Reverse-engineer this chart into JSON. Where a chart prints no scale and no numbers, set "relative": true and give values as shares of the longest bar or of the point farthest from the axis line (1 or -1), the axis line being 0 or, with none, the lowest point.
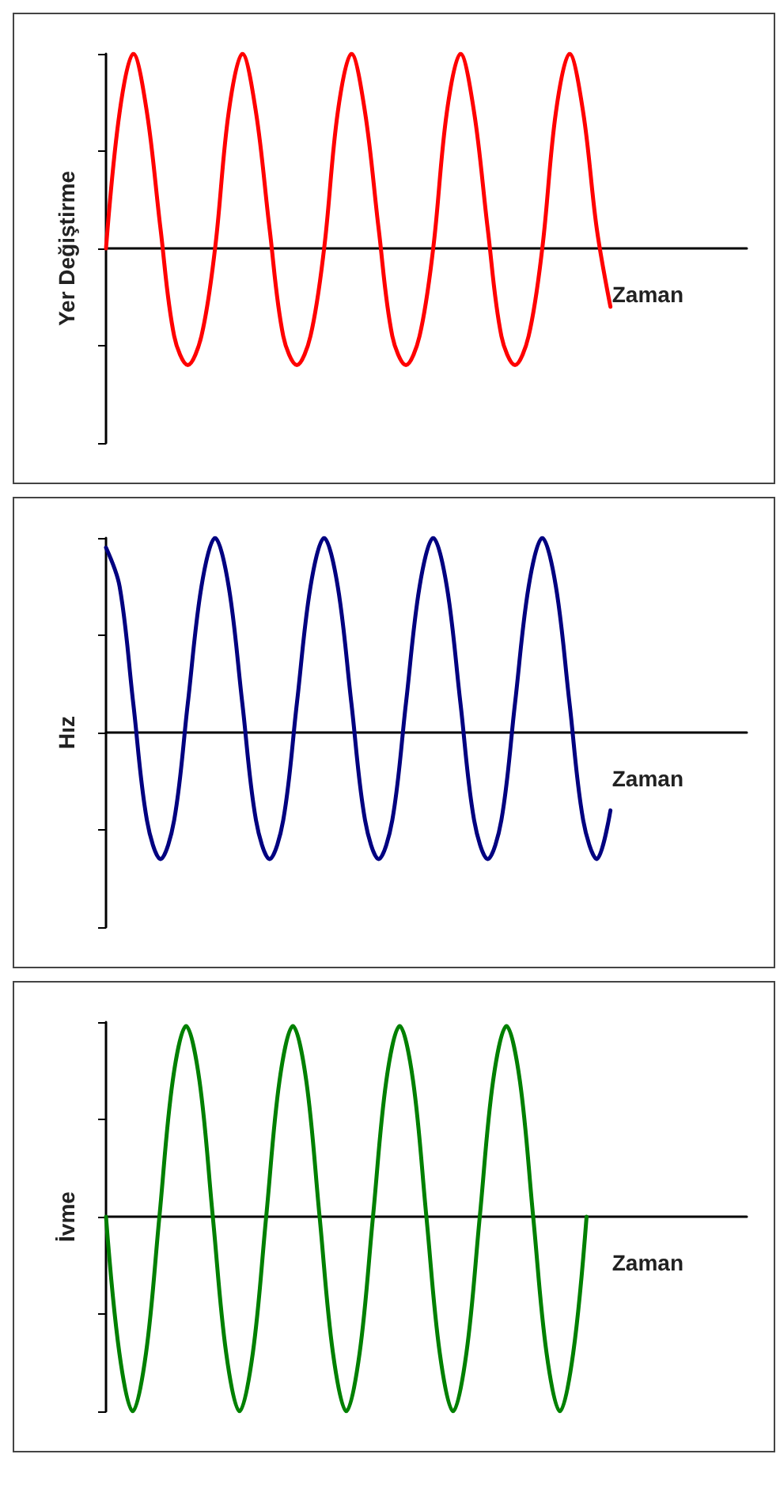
{
  "chart_data": [
    {
      "type": "line",
      "relative": true,
      "xlabel": "Zaman",
      "ylabel": "Yer Değiştirme",
      "categories": [
        null,
        null,
        null,
        null,
        null,
        null,
        null,
        null,
        null,
        null,
        null,
        null,
        null,
        null,
        null,
        null,
        null,
        null,
        null,
        null,
        null,
        null,
        null,
        null,
        null,
        null,
        null,
        null,
        null,
        null,
        null,
        null,
        null,
        null,
        null,
        null,
        null,
        null,
        null,
        null,
        null,
        null,
        null,
        null,
        null,
        null,
        null,
        null
      ],
      "series": [
        {
          "color": "#ff0000",
          "values": [
            0,
            0.7,
            1,
            0.7,
            0.1,
            -0.45,
            -0.6,
            -0.45,
            0,
            0.7,
            1,
            0.7,
            0.1,
            -0.45,
            -0.6,
            -0.45,
            0,
            0.7,
            1,
            0.7,
            0.1,
            -0.45,
            -0.6,
            -0.45,
            0,
            0.7,
            1,
            0.7,
            0.1,
            -0.45,
            -0.6,
            -0.45,
            0,
            0.7,
            1,
            0.7,
            0.1,
            -0.3,
            null,
            null,
            null,
            null,
            null,
            null,
            null,
            null,
            null,
            null
          ]
        }
      ]
    },
    {
      "type": "line",
      "relative": true,
      "xlabel": "Zaman",
      "ylabel": "Hız",
      "categories": [
        null,
        null,
        null,
        null,
        null,
        null,
        null,
        null,
        null,
        null,
        null,
        null,
        null,
        null,
        null,
        null,
        null,
        null,
        null,
        null,
        null,
        null,
        null,
        null,
        null,
        null,
        null,
        null,
        null,
        null,
        null,
        null,
        null,
        null,
        null,
        null,
        null,
        null,
        null,
        null,
        null,
        null,
        null,
        null,
        null,
        null,
        null,
        null
      ],
      "series": [
        {
          "color": "#000080",
          "values": [
            0.95,
            0.75,
            0.15,
            -0.45,
            -0.65,
            -0.45,
            0.15,
            0.75,
            1,
            0.75,
            0.15,
            -0.45,
            -0.65,
            -0.45,
            0.15,
            0.75,
            1,
            0.75,
            0.15,
            -0.45,
            -0.65,
            -0.45,
            0.15,
            0.75,
            1,
            0.75,
            0.15,
            -0.45,
            -0.65,
            -0.45,
            0.15,
            0.75,
            1,
            0.75,
            0.15,
            -0.45,
            -0.65,
            -0.4,
            null,
            null,
            null,
            null,
            null,
            null,
            null,
            null,
            null,
            null
          ]
        }
      ]
    },
    {
      "type": "line",
      "relative": true,
      "xlabel": "Zaman",
      "ylabel": "İvme",
      "categories": [
        null,
        null,
        null,
        null,
        null,
        null,
        null,
        null,
        null,
        null,
        null,
        null,
        null,
        null,
        null,
        null,
        null,
        null,
        null,
        null,
        null,
        null,
        null,
        null,
        null,
        null,
        null,
        null,
        null,
        null,
        null,
        null,
        null,
        null,
        null,
        null,
        null,
        null,
        null,
        null,
        null,
        null,
        null,
        null,
        null,
        null,
        null,
        null,
        null
      ],
      "series": [
        {
          "color": "#008000",
          "values": [
            0,
            -0.7,
            -1,
            -0.7,
            0,
            0.7,
            0.98,
            0.7,
            0,
            -0.7,
            -1,
            -0.7,
            0,
            0.7,
            0.98,
            0.7,
            0,
            -0.7,
            -1,
            -0.7,
            0,
            0.7,
            0.98,
            0.7,
            0,
            -0.7,
            -1,
            -0.7,
            0,
            0.7,
            0.98,
            0.7,
            0,
            -0.7,
            -1,
            -0.7,
            0,
            null,
            null,
            null,
            null,
            null,
            null,
            null,
            null,
            null,
            null,
            null,
            null
          ]
        }
      ]
    }
  ]
}
